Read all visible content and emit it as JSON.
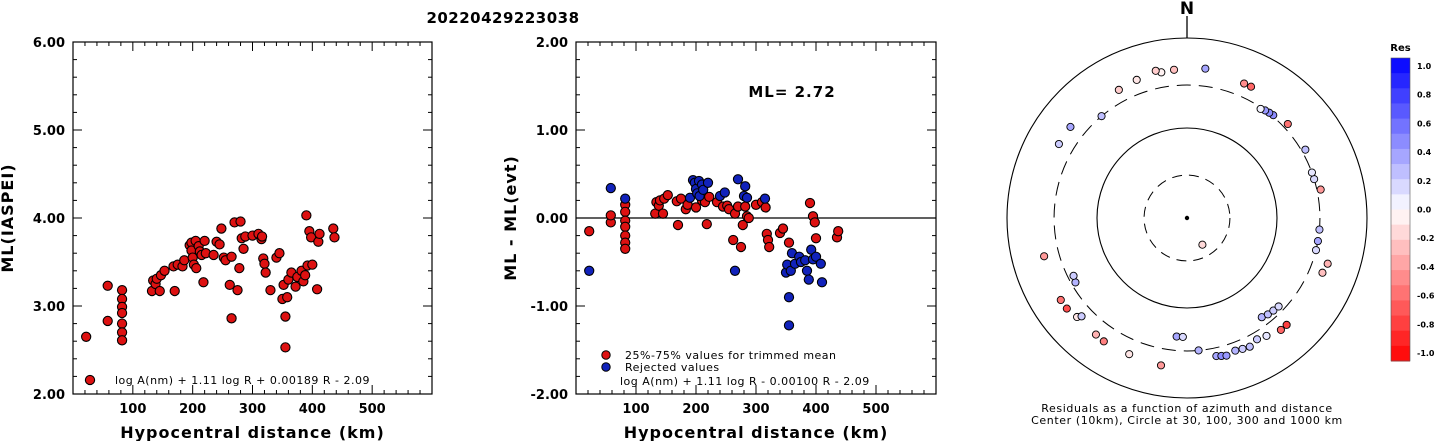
{
  "header": {
    "event_id": "20220429223038"
  },
  "chart_data": [
    {
      "type": "scatter",
      "ylabel": "ML(IASPEI)",
      "xlabel": "Hypocentral distance (km)",
      "xlim": [
        0,
        600
      ],
      "ylim": [
        2.0,
        6.0
      ],
      "xticks": [
        "100",
        "200",
        "300",
        "400",
        "500"
      ],
      "yticks": [
        "2.00",
        "3.00",
        "4.00",
        "5.00",
        "6.00"
      ],
      "legend_text": "log A(nm) + 1.11 log R + 0.00189 R - 2.09",
      "marker_color": "#dd1111",
      "points": [
        [
          22,
          2.65
        ],
        [
          58,
          3.23
        ],
        [
          58,
          2.83
        ],
        [
          82,
          3.18
        ],
        [
          82,
          3.08
        ],
        [
          82,
          2.99
        ],
        [
          82,
          2.92
        ],
        [
          82,
          2.8
        ],
        [
          82,
          2.7
        ],
        [
          82,
          2.61
        ],
        [
          132,
          3.17
        ],
        [
          134,
          3.29
        ],
        [
          138,
          3.25
        ],
        [
          140,
          3.31
        ],
        [
          145,
          3.17
        ],
        [
          147,
          3.35
        ],
        [
          153,
          3.4
        ],
        [
          168,
          3.45
        ],
        [
          170,
          3.17
        ],
        [
          175,
          3.47
        ],
        [
          183,
          3.45
        ],
        [
          186,
          3.52
        ],
        [
          195,
          3.69
        ],
        [
          198,
          3.72
        ],
        [
          198,
          3.63
        ],
        [
          200,
          3.55
        ],
        [
          202,
          3.47
        ],
        [
          205,
          3.74
        ],
        [
          206,
          3.43
        ],
        [
          210,
          3.68
        ],
        [
          212,
          3.62
        ],
        [
          215,
          3.58
        ],
        [
          218,
          3.27
        ],
        [
          220,
          3.74
        ],
        [
          222,
          3.6
        ],
        [
          235,
          3.58
        ],
        [
          240,
          3.73
        ],
        [
          245,
          3.7
        ],
        [
          248,
          3.88
        ],
        [
          252,
          3.55
        ],
        [
          255,
          3.52
        ],
        [
          262,
          3.24
        ],
        [
          265,
          3.56
        ],
        [
          265,
          2.86
        ],
        [
          270,
          3.95
        ],
        [
          275,
          3.18
        ],
        [
          278,
          3.43
        ],
        [
          280,
          3.96
        ],
        [
          282,
          3.77
        ],
        [
          285,
          3.65
        ],
        [
          288,
          3.79
        ],
        [
          300,
          3.8
        ],
        [
          310,
          3.82
        ],
        [
          315,
          3.76
        ],
        [
          316,
          3.79
        ],
        [
          318,
          3.54
        ],
        [
          320,
          3.48
        ],
        [
          322,
          3.38
        ],
        [
          330,
          3.18
        ],
        [
          340,
          3.55
        ],
        [
          345,
          3.6
        ],
        [
          350,
          3.08
        ],
        [
          352,
          3.24
        ],
        [
          355,
          2.88
        ],
        [
          355,
          2.53
        ],
        [
          358,
          3.1
        ],
        [
          360,
          3.3
        ],
        [
          365,
          3.38
        ],
        [
          372,
          3.22
        ],
        [
          375,
          3.33
        ],
        [
          382,
          3.4
        ],
        [
          385,
          3.28
        ],
        [
          388,
          3.35
        ],
        [
          390,
          4.03
        ],
        [
          392,
          3.46
        ],
        [
          395,
          3.85
        ],
        [
          398,
          3.78
        ],
        [
          400,
          3.47
        ],
        [
          408,
          3.19
        ],
        [
          410,
          3.73
        ],
        [
          412,
          3.82
        ],
        [
          435,
          3.88
        ],
        [
          437,
          3.78
        ]
      ]
    },
    {
      "type": "scatter",
      "ylabel": "ML - ML(evt)",
      "xlabel": "Hypocentral distance (km)",
      "xlim": [
        0,
        600
      ],
      "ylim": [
        -2.0,
        2.0
      ],
      "xticks": [
        "100",
        "200",
        "300",
        "400",
        "500"
      ],
      "yticks": [
        "-2.00",
        "-1.00",
        "0.00",
        "1.00",
        "2.00"
      ],
      "reference_line": 0,
      "annotation": "ML= 2.72",
      "legend": [
        {
          "label": "25%-75% values for trimmed mean",
          "color": "#dd1111"
        },
        {
          "label": "Rejected values",
          "color": "#1122bb"
        }
      ],
      "formula": "log A(nm) + 1.11 log R - 0.00100 R - 2.09",
      "series": [
        {
          "name": "25%-75% values for trimmed mean",
          "color": "#dd1111",
          "points": [
            [
              22,
              -0.15
            ],
            [
              58,
              -0.05
            ],
            [
              58,
              0.03
            ],
            [
              82,
              0.15
            ],
            [
              82,
              0.07
            ],
            [
              82,
              -0.03
            ],
            [
              82,
              -0.1
            ],
            [
              82,
              -0.2
            ],
            [
              82,
              -0.28
            ],
            [
              82,
              -0.35
            ],
            [
              132,
              0.05
            ],
            [
              134,
              0.18
            ],
            [
              138,
              0.14
            ],
            [
              140,
              0.2
            ],
            [
              145,
              0.05
            ],
            [
              147,
              0.22
            ],
            [
              153,
              0.26
            ],
            [
              168,
              0.19
            ],
            [
              170,
              -0.08
            ],
            [
              175,
              0.22
            ],
            [
              183,
              0.1
            ],
            [
              186,
              0.15
            ],
            [
              200,
              0.12
            ],
            [
              210,
              0.2
            ],
            [
              215,
              0.18
            ],
            [
              218,
              -0.07
            ],
            [
              222,
              0.24
            ],
            [
              235,
              0.18
            ],
            [
              245,
              0.13
            ],
            [
              252,
              0.14
            ],
            [
              255,
              0.1
            ],
            [
              262,
              -0.25
            ],
            [
              265,
              0.05
            ],
            [
              270,
              0.13
            ],
            [
              275,
              -0.33
            ],
            [
              278,
              -0.08
            ],
            [
              282,
              0.13
            ],
            [
              285,
              0.02
            ],
            [
              288,
              0.0
            ],
            [
              300,
              0.15
            ],
            [
              310,
              0.18
            ],
            [
              316,
              0.12
            ],
            [
              318,
              -0.18
            ],
            [
              320,
              -0.25
            ],
            [
              322,
              -0.33
            ],
            [
              340,
              -0.17
            ],
            [
              345,
              -0.12
            ],
            [
              355,
              -0.28
            ],
            [
              390,
              0.17
            ],
            [
              395,
              0.02
            ],
            [
              398,
              -0.05
            ],
            [
              400,
              -0.23
            ],
            [
              435,
              -0.22
            ],
            [
              437,
              -0.15
            ]
          ]
        },
        {
          "name": "Rejected values",
          "color": "#1122bb",
          "points": [
            [
              22,
              -0.6
            ],
            [
              58,
              0.34
            ],
            [
              82,
              0.22
            ],
            [
              190,
              0.23
            ],
            [
              195,
              0.43
            ],
            [
              198,
              0.4
            ],
            [
              200,
              0.33
            ],
            [
              202,
              0.28
            ],
            [
              205,
              0.42
            ],
            [
              206,
              0.25
            ],
            [
              210,
              0.38
            ],
            [
              212,
              0.32
            ],
            [
              220,
              0.4
            ],
            [
              240,
              0.25
            ],
            [
              248,
              0.29
            ],
            [
              265,
              -0.6
            ],
            [
              270,
              0.44
            ],
            [
              280,
              0.25
            ],
            [
              282,
              0.36
            ],
            [
              285,
              0.23
            ],
            [
              315,
              0.22
            ],
            [
              350,
              -0.62
            ],
            [
              352,
              -0.53
            ],
            [
              355,
              -0.9
            ],
            [
              355,
              -1.22
            ],
            [
              358,
              -0.6
            ],
            [
              360,
              -0.4
            ],
            [
              365,
              -0.52
            ],
            [
              372,
              -0.44
            ],
            [
              375,
              -0.5
            ],
            [
              382,
              -0.48
            ],
            [
              385,
              -0.6
            ],
            [
              388,
              -0.7
            ],
            [
              392,
              -0.36
            ],
            [
              395,
              -0.47
            ],
            [
              400,
              -0.44
            ],
            [
              408,
              -0.52
            ],
            [
              410,
              -0.73
            ]
          ]
        }
      ]
    },
    {
      "type": "polar-scatter",
      "north_label": "N",
      "caption_line1": "Residuals as a function of azimuth and distance",
      "caption_line2": "Center (10km), Circle at 30, 100, 300 and 1000 km",
      "rings_km": [
        30,
        100,
        300,
        1000
      ],
      "colorbar": {
        "title": "Res",
        "ticks": [
          "1.0",
          "0.8",
          "0.6",
          "0.4",
          "0.2",
          "0.0",
          "-0.2",
          "-0.4",
          "-0.6",
          "-0.8",
          "-1.0"
        ],
        "range": [
          -1.0,
          1.0
        ]
      },
      "points": [
        {
          "az": 150,
          "dist": 22,
          "res": -0.15
        },
        {
          "az": 7,
          "dist": 470,
          "res": 0.35
        },
        {
          "az": 350,
          "dist": 440,
          "res": -0.05
        },
        {
          "az": 355,
          "dist": 450,
          "res": -0.25
        },
        {
          "az": 348,
          "dist": 470,
          "res": -0.2
        },
        {
          "az": 340,
          "dist": 430,
          "res": -0.1
        },
        {
          "az": 332,
          "dist": 410,
          "res": -0.2
        },
        {
          "az": 320,
          "dist": 300,
          "res": 0.25
        },
        {
          "az": 308,
          "dist": 440,
          "res": 0.35
        },
        {
          "az": 300,
          "dist": 440,
          "res": 0.2
        },
        {
          "az": 255,
          "dist": 440,
          "res": -0.4
        },
        {
          "az": 233,
          "dist": 470,
          "res": -0.7
        },
        {
          "az": 237,
          "dist": 470,
          "res": -0.55
        },
        {
          "az": 228,
          "dist": 440,
          "res": -0.1
        },
        {
          "az": 227,
          "dist": 400,
          "res": 0.2
        },
        {
          "az": 218,
          "dist": 440,
          "res": -0.3
        },
        {
          "az": 214,
          "dist": 450,
          "res": -0.5
        },
        {
          "az": 203,
          "dist": 440,
          "res": -0.1
        },
        {
          "az": 190,
          "dist": 460,
          "res": -0.4
        },
        {
          "az": 240,
          "dist": 270,
          "res": 0.3
        },
        {
          "az": 243,
          "dist": 260,
          "res": 0.2
        },
        {
          "az": 185,
          "dist": 210,
          "res": 0.35
        },
        {
          "az": 182,
          "dist": 210,
          "res": 0.15
        },
        {
          "az": 175,
          "dist": 300,
          "res": 0.3
        },
        {
          "az": 168,
          "dist": 370,
          "res": 0.35
        },
        {
          "az": 166,
          "dist": 380,
          "res": 0.45
        },
        {
          "az": 164,
          "dist": 390,
          "res": 0.4
        },
        {
          "az": 160,
          "dist": 370,
          "res": 0.3
        },
        {
          "az": 157,
          "dist": 380,
          "res": 0.2
        },
        {
          "az": 154,
          "dist": 390,
          "res": 0.25
        },
        {
          "az": 150,
          "dist": 360,
          "res": 0.2
        },
        {
          "az": 146,
          "dist": 380,
          "res": 0.1
        },
        {
          "az": 140,
          "dist": 420,
          "res": -0.6
        },
        {
          "az": 137,
          "dist": 420,
          "res": -0.75
        },
        {
          "az": 143,
          "dist": 240,
          "res": 0.3
        },
        {
          "az": 140,
          "dist": 250,
          "res": 0.25
        },
        {
          "az": 137,
          "dist": 255,
          "res": 0.2
        },
        {
          "az": 134,
          "dist": 260,
          "res": 0.15
        },
        {
          "az": 112,
          "dist": 420,
          "res": -0.25
        },
        {
          "az": 108,
          "dist": 440,
          "res": -0.3
        },
        {
          "az": 104,
          "dist": 300,
          "res": 0.15
        },
        {
          "az": 100,
          "dist": 300,
          "res": 0.35
        },
        {
          "az": 95,
          "dist": 300,
          "res": 0.25
        },
        {
          "az": 78,
          "dist": 330,
          "res": -0.4
        },
        {
          "az": 73,
          "dist": 300,
          "res": 0.15
        },
        {
          "az": 70,
          "dist": 300,
          "res": 0.1
        },
        {
          "az": 60,
          "dist": 330,
          "res": 0.25
        },
        {
          "az": 47,
          "dist": 340,
          "res": -0.55
        },
        {
          "az": 40,
          "dist": 310,
          "res": 0.45
        },
        {
          "az": 38,
          "dist": 305,
          "res": 0.45
        },
        {
          "az": 36,
          "dist": 300,
          "res": 0.4
        },
        {
          "az": 34,
          "dist": 290,
          "res": 0.05
        },
        {
          "az": 26,
          "dist": 420,
          "res": -0.6
        },
        {
          "az": 23,
          "dist": 420,
          "res": -0.45
        }
      ]
    }
  ]
}
